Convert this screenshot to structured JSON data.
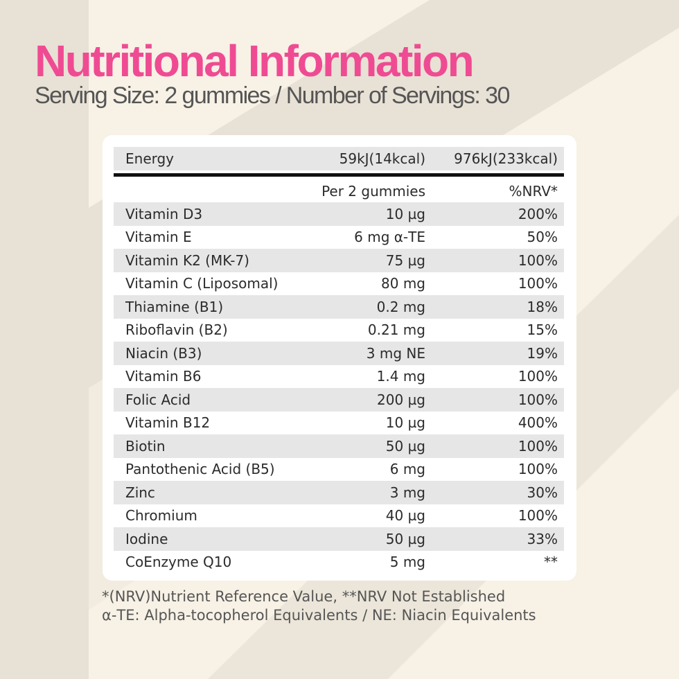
{
  "title": "Nutritional Information",
  "subtitle": "Serving Size: 2 gummies  / Number of Servings: 30",
  "colors": {
    "accent": "#ef4b93",
    "background": "#f7f1e6",
    "stripe": "#e8e1d5",
    "row_shade": "#e6e6e6"
  },
  "energy": {
    "label": "Energy",
    "per_serving": "59kJ(14kcal)",
    "per_100g": "976kJ(233kcal)"
  },
  "header": {
    "col2": "Per 2  gummies",
    "col3": "%NRV*"
  },
  "rows": [
    {
      "name": "Vitamin D3",
      "amount": "10 µg",
      "nrv": "200%"
    },
    {
      "name": "Vitamin E",
      "amount": "6 mg α-TE",
      "nrv": "50%"
    },
    {
      "name": "Vitamin K2 (MK-7)",
      "amount": "75 µg",
      "nrv": "100%"
    },
    {
      "name": "Vitamin C (Liposomal)",
      "amount": "80 mg",
      "nrv": "100%"
    },
    {
      "name": "Thiamine (B1)",
      "amount": "0.2 mg",
      "nrv": "18%"
    },
    {
      "name": "Riboflavin (B2)",
      "amount": "0.21 mg",
      "nrv": "15%"
    },
    {
      "name": "Niacin (B3)",
      "amount": "3 mg NE",
      "nrv": "19%"
    },
    {
      "name": "Vitamin B6",
      "amount": "1.4 mg",
      "nrv": "100%"
    },
    {
      "name": "Folic Acid",
      "amount": "200 µg",
      "nrv": "100%"
    },
    {
      "name": "Vitamin B12",
      "amount": "10 µg",
      "nrv": "400%"
    },
    {
      "name": "Biotin",
      "amount": "50 µg",
      "nrv": "100%"
    },
    {
      "name": "Pantothenic Acid (B5)",
      "amount": "6 mg",
      "nrv": "100%"
    },
    {
      "name": "Zinc",
      "amount": "3 mg",
      "nrv": "30%"
    },
    {
      "name": "Chromium",
      "amount": "40 µg",
      "nrv": "100%"
    },
    {
      "name": "Iodine",
      "amount": "50 µg",
      "nrv": "33%"
    },
    {
      "name": "CoEnzyme Q10",
      "amount": "5 mg",
      "nrv": "**"
    }
  ],
  "footnotes": [
    "*(NRV)Nutrient Reference Value, **NRV Not Established",
    "α-TE:  Alpha-tocopherol Equivalents / NE: Niacin Equivalents"
  ]
}
